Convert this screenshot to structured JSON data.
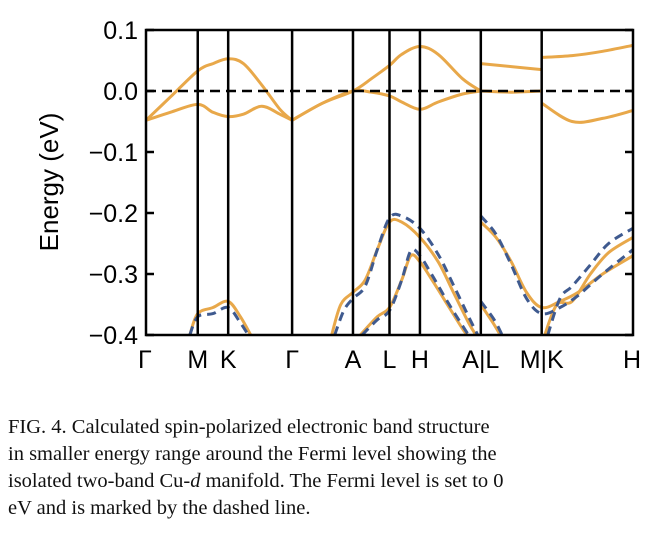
{
  "chart_data": {
    "type": "line",
    "ylabel": "Energy (eV)",
    "ylim": [
      -0.4,
      0.1
    ],
    "yticks": [
      0.1,
      0.0,
      -0.1,
      -0.2,
      -0.3,
      -0.4
    ],
    "ytick_labels": [
      "0.1",
      "0.0",
      "−0.1",
      "−0.2",
      "−0.3",
      "−0.4"
    ],
    "xlim": [
      0,
      8
    ],
    "kpoints": [
      {
        "label": "Γ",
        "x": 0.0
      },
      {
        "label": "M",
        "x": 0.85
      },
      {
        "label": "K",
        "x": 1.35
      },
      {
        "label": "Γ",
        "x": 2.4
      },
      {
        "label": "A",
        "x": 3.4
      },
      {
        "label": "L",
        "x": 4.0
      },
      {
        "label": "H",
        "x": 4.5
      },
      {
        "label": "A|L",
        "x": 5.5
      },
      {
        "label": "M|K",
        "x": 6.5
      },
      {
        "label": "H",
        "x": 8.0
      }
    ],
    "fermi_level": 0.0,
    "series": [
      {
        "style": "solid-orange",
        "points": [
          [
            0,
            -0.048
          ],
          [
            0.4,
            -0.01
          ],
          [
            0.85,
            0.033
          ],
          [
            1.1,
            0.045
          ],
          [
            1.35,
            0.053
          ],
          [
            1.6,
            0.045
          ],
          [
            1.9,
            0.01
          ],
          [
            2.2,
            -0.03
          ],
          [
            2.4,
            -0.048
          ]
        ]
      },
      {
        "style": "solid-orange",
        "points": [
          [
            0,
            -0.048
          ],
          [
            0.4,
            -0.035
          ],
          [
            0.85,
            -0.022
          ],
          [
            1.1,
            -0.035
          ],
          [
            1.35,
            -0.042
          ],
          [
            1.6,
            -0.038
          ],
          [
            1.9,
            -0.025
          ],
          [
            2.2,
            -0.038
          ],
          [
            2.4,
            -0.048
          ]
        ]
      },
      {
        "style": "solid-orange",
        "points": [
          [
            2.4,
            -0.048
          ],
          [
            2.9,
            -0.02
          ],
          [
            3.4,
            0.0
          ],
          [
            3.7,
            0.02
          ],
          [
            4.0,
            0.042
          ],
          [
            4.2,
            0.06
          ],
          [
            4.5,
            0.073
          ],
          [
            4.8,
            0.06
          ],
          [
            5.2,
            0.02
          ],
          [
            5.5,
            0.0
          ]
        ]
      },
      {
        "style": "solid-orange",
        "points": [
          [
            2.4,
            -0.048
          ],
          [
            2.9,
            -0.02
          ],
          [
            3.4,
            0.0
          ],
          [
            3.7,
            -0.002
          ],
          [
            4.0,
            -0.008
          ],
          [
            4.2,
            -0.018
          ],
          [
            4.5,
            -0.03
          ],
          [
            4.8,
            -0.018
          ],
          [
            5.2,
            -0.005
          ],
          [
            5.5,
            0.0
          ]
        ]
      },
      {
        "style": "solid-orange",
        "points": [
          [
            5.5,
            0.045
          ],
          [
            6.0,
            0.04
          ],
          [
            6.5,
            0.035
          ]
        ]
      },
      {
        "style": "solid-orange",
        "points": [
          [
            5.5,
            0.0
          ],
          [
            6.0,
            -0.002
          ],
          [
            6.5,
            0.0
          ]
        ]
      },
      {
        "style": "solid-orange",
        "points": [
          [
            6.5,
            0.055
          ],
          [
            7.0,
            0.058
          ],
          [
            7.5,
            0.065
          ],
          [
            8.0,
            0.075
          ]
        ]
      },
      {
        "style": "solid-orange",
        "points": [
          [
            6.5,
            -0.02
          ],
          [
            7.0,
            -0.05
          ],
          [
            7.5,
            -0.045
          ],
          [
            8.0,
            -0.032
          ]
        ]
      },
      {
        "style": "solid-orange",
        "points": [
          [
            0.72,
            -0.4
          ],
          [
            0.85,
            -0.365
          ],
          [
            1.1,
            -0.355
          ],
          [
            1.35,
            -0.345
          ],
          [
            1.55,
            -0.37
          ],
          [
            1.72,
            -0.4
          ]
        ]
      },
      {
        "style": "dashed-blue",
        "points": [
          [
            0.72,
            -0.4
          ],
          [
            0.85,
            -0.37
          ],
          [
            1.1,
            -0.365
          ],
          [
            1.35,
            -0.355
          ],
          [
            1.55,
            -0.38
          ],
          [
            1.68,
            -0.4
          ]
        ]
      },
      {
        "style": "solid-orange",
        "points": [
          [
            3.05,
            -0.4
          ],
          [
            3.2,
            -0.35
          ],
          [
            3.4,
            -0.33
          ],
          [
            3.6,
            -0.31
          ],
          [
            3.8,
            -0.26
          ],
          [
            4.0,
            -0.215
          ],
          [
            4.2,
            -0.215
          ],
          [
            4.5,
            -0.24
          ],
          [
            4.8,
            -0.28
          ],
          [
            5.05,
            -0.33
          ],
          [
            5.3,
            -0.38
          ],
          [
            5.42,
            -0.4
          ]
        ]
      },
      {
        "style": "dashed-blue",
        "points": [
          [
            3.1,
            -0.4
          ],
          [
            3.25,
            -0.36
          ],
          [
            3.4,
            -0.34
          ],
          [
            3.6,
            -0.32
          ],
          [
            3.8,
            -0.26
          ],
          [
            4.0,
            -0.208
          ],
          [
            4.2,
            -0.205
          ],
          [
            4.5,
            -0.225
          ],
          [
            4.8,
            -0.268
          ],
          [
            5.05,
            -0.318
          ],
          [
            5.3,
            -0.37
          ],
          [
            5.45,
            -0.4
          ]
        ]
      },
      {
        "style": "solid-orange",
        "points": [
          [
            3.52,
            -0.4
          ],
          [
            3.8,
            -0.37
          ],
          [
            4.0,
            -0.355
          ],
          [
            4.2,
            -0.31
          ],
          [
            4.35,
            -0.27
          ],
          [
            4.5,
            -0.28
          ],
          [
            4.7,
            -0.31
          ],
          [
            4.95,
            -0.35
          ],
          [
            5.2,
            -0.39
          ],
          [
            5.28,
            -0.4
          ]
        ]
      },
      {
        "style": "dashed-blue",
        "points": [
          [
            3.55,
            -0.4
          ],
          [
            3.8,
            -0.375
          ],
          [
            4.0,
            -0.36
          ],
          [
            4.2,
            -0.31
          ],
          [
            4.35,
            -0.262
          ],
          [
            4.5,
            -0.27
          ],
          [
            4.7,
            -0.302
          ],
          [
            4.95,
            -0.345
          ],
          [
            5.2,
            -0.385
          ],
          [
            5.3,
            -0.4
          ]
        ]
      },
      {
        "style": "solid-orange",
        "points": [
          [
            5.5,
            -0.215
          ],
          [
            5.75,
            -0.24
          ],
          [
            6.0,
            -0.28
          ],
          [
            6.25,
            -0.33
          ],
          [
            6.5,
            -0.355
          ],
          [
            6.8,
            -0.345
          ],
          [
            7.1,
            -0.33
          ],
          [
            7.5,
            -0.3
          ],
          [
            8.0,
            -0.27
          ]
        ]
      },
      {
        "style": "dashed-blue",
        "points": [
          [
            5.5,
            -0.205
          ],
          [
            5.75,
            -0.235
          ],
          [
            6.0,
            -0.285
          ],
          [
            6.25,
            -0.34
          ],
          [
            6.5,
            -0.365
          ],
          [
            6.8,
            -0.355
          ],
          [
            7.1,
            -0.335
          ],
          [
            7.5,
            -0.3
          ],
          [
            8.0,
            -0.26
          ]
        ]
      },
      {
        "style": "solid-orange",
        "points": [
          [
            5.5,
            -0.35
          ],
          [
            5.7,
            -0.38
          ],
          [
            5.82,
            -0.4
          ]
        ]
      },
      {
        "style": "dashed-blue",
        "points": [
          [
            5.5,
            -0.345
          ],
          [
            5.72,
            -0.375
          ],
          [
            5.85,
            -0.4
          ]
        ]
      },
      {
        "style": "solid-orange",
        "points": [
          [
            6.55,
            -0.4
          ],
          [
            6.75,
            -0.35
          ],
          [
            7.0,
            -0.345
          ],
          [
            7.3,
            -0.3
          ],
          [
            7.6,
            -0.265
          ],
          [
            8.0,
            -0.24
          ]
        ]
      },
      {
        "style": "dashed-blue",
        "points": [
          [
            6.6,
            -0.4
          ],
          [
            6.8,
            -0.34
          ],
          [
            7.0,
            -0.32
          ],
          [
            7.3,
            -0.285
          ],
          [
            7.6,
            -0.25
          ],
          [
            8.0,
            -0.225
          ]
        ]
      }
    ]
  },
  "caption": {
    "line1": "FIG. 4.  Calculated spin-polarized electronic band structure",
    "line2": "in smaller energy range around the Fermi level showing the",
    "line3_pre": "isolated two-band Cu-",
    "line3_italic": "d",
    "line3_post": " manifold. The Fermi level is set to 0",
    "line4": "eV and is marked by the dashed line."
  },
  "colors": {
    "orange": "#e8a84a",
    "blue": "#3f5a8f",
    "axis": "#000000"
  }
}
